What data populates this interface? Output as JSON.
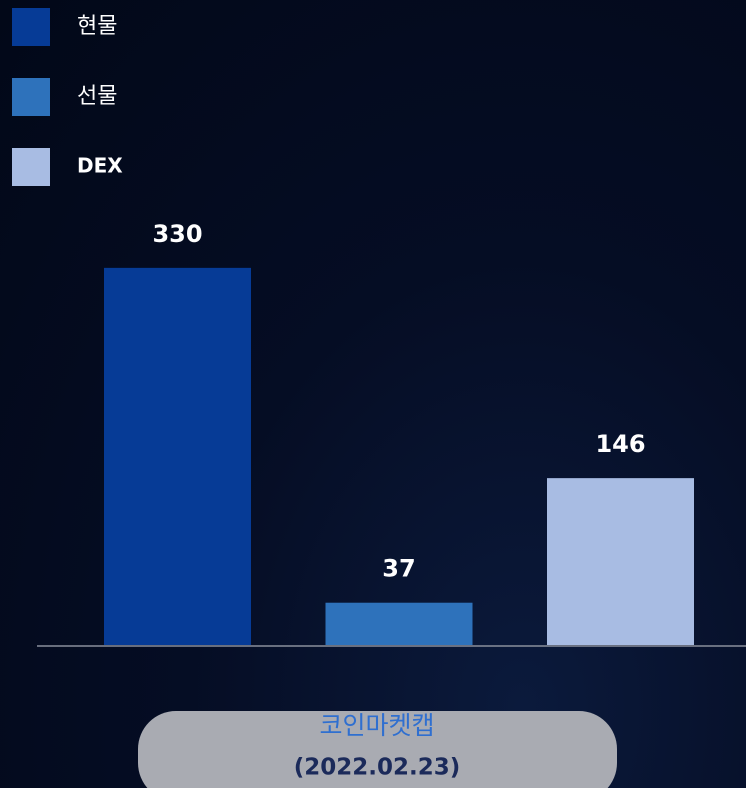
{
  "chart_data": {
    "type": "bar",
    "categories": [
      [
        "코인마켓캡",
        "(2022.02.23)"
      ]
    ],
    "series": [
      {
        "name": "현물",
        "color": "#063b96",
        "values": [
          330
        ]
      },
      {
        "name": "선물",
        "color": "#2e72bb",
        "values": [
          37
        ]
      },
      {
        "name": "DEX",
        "color": "#a8bce3",
        "values": [
          146
        ]
      }
    ],
    "ylim": [
      0,
      350
    ]
  }
}
